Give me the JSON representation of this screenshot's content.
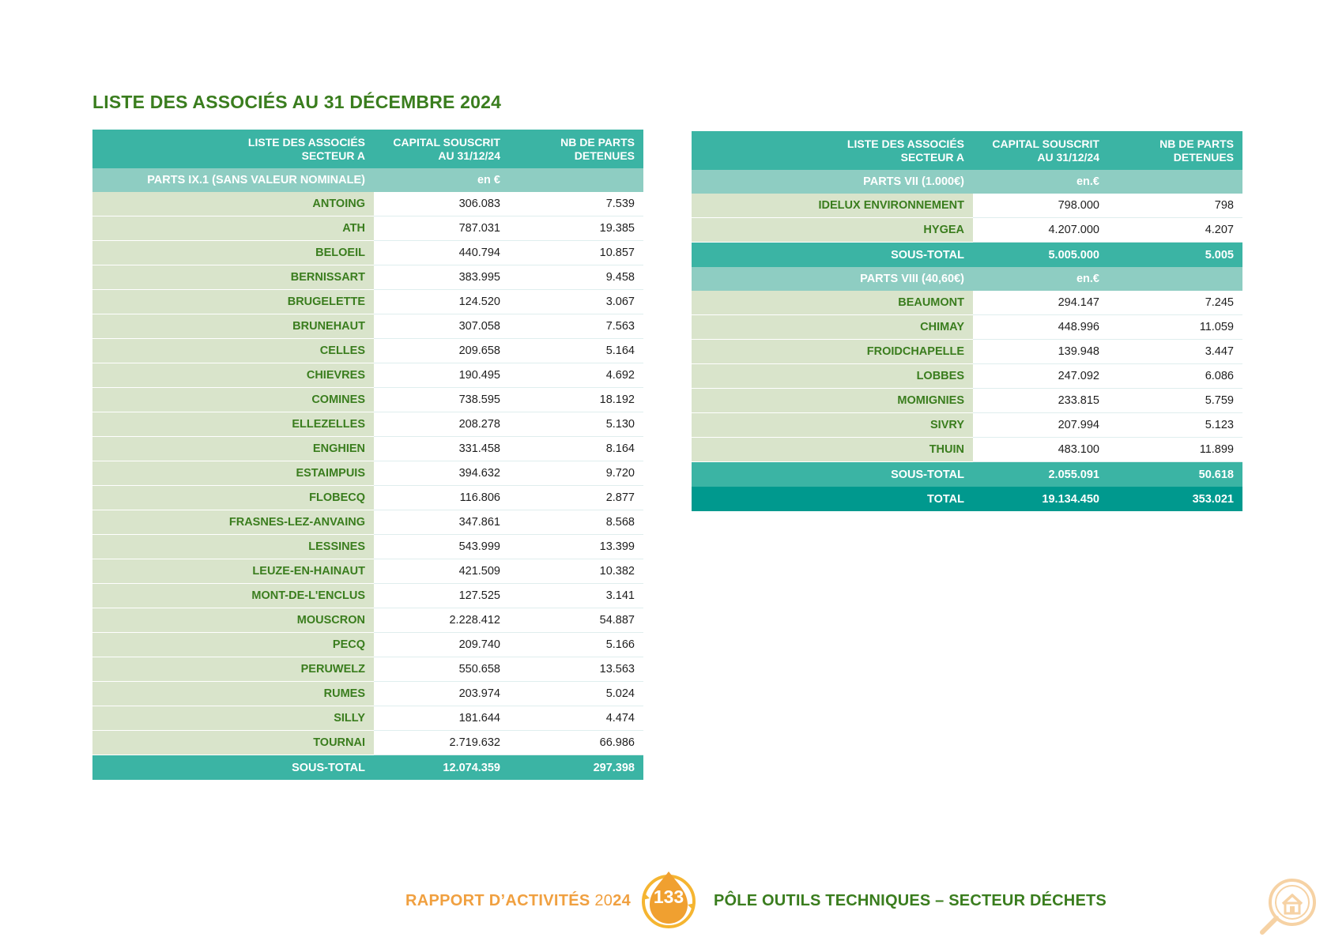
{
  "title": "LISTE DES ASSOCIÉS AU 31 DÉCEMBRE 2024",
  "left_table": {
    "header": {
      "col1_line1": "LISTE DES ASSOCIÉS",
      "col1_line2": "SECTEUR A",
      "col2_line1": "CAPITAL SOUSCRIT",
      "col2_line2": "AU 31/12/24",
      "col3_line1": "NB DE PARTS",
      "col3_line2": "DETENUES"
    },
    "section": {
      "label": "PARTS IX.1 (SANS VALEUR NOMINALE)",
      "unit": "en €"
    },
    "rows": [
      {
        "name": "ANTOING",
        "capital": "306.083",
        "parts": "7.539"
      },
      {
        "name": "ATH",
        "capital": "787.031",
        "parts": "19.385"
      },
      {
        "name": "BELOEIL",
        "capital": "440.794",
        "parts": "10.857"
      },
      {
        "name": "BERNISSART",
        "capital": "383.995",
        "parts": "9.458"
      },
      {
        "name": "BRUGELETTE",
        "capital": "124.520",
        "parts": "3.067"
      },
      {
        "name": "BRUNEHAUT",
        "capital": "307.058",
        "parts": "7.563"
      },
      {
        "name": "CELLES",
        "capital": "209.658",
        "parts": "5.164"
      },
      {
        "name": "CHIEVRES",
        "capital": "190.495",
        "parts": "4.692"
      },
      {
        "name": "COMINES",
        "capital": "738.595",
        "parts": "18.192"
      },
      {
        "name": "ELLEZELLES",
        "capital": "208.278",
        "parts": "5.130"
      },
      {
        "name": "ENGHIEN",
        "capital": "331.458",
        "parts": "8.164"
      },
      {
        "name": "ESTAIMPUIS",
        "capital": "394.632",
        "parts": "9.720"
      },
      {
        "name": "FLOBECQ",
        "capital": "116.806",
        "parts": "2.877"
      },
      {
        "name": "FRASNES-LEZ-ANVAING",
        "capital": "347.861",
        "parts": "8.568"
      },
      {
        "name": "LESSINES",
        "capital": "543.999",
        "parts": "13.399"
      },
      {
        "name": "LEUZE-EN-HAINAUT",
        "capital": "421.509",
        "parts": "10.382"
      },
      {
        "name": "MONT-DE-L'ENCLUS",
        "capital": "127.525",
        "parts": "3.141"
      },
      {
        "name": "MOUSCRON",
        "capital": "2.228.412",
        "parts": "54.887"
      },
      {
        "name": "PECQ",
        "capital": "209.740",
        "parts": "5.166"
      },
      {
        "name": "PERUWELZ",
        "capital": "550.658",
        "parts": "13.563"
      },
      {
        "name": "RUMES",
        "capital": "203.974",
        "parts": "5.024"
      },
      {
        "name": "SILLY",
        "capital": "181.644",
        "parts": "4.474"
      },
      {
        "name": "TOURNAI",
        "capital": "2.719.632",
        "parts": "66.986"
      }
    ],
    "subtotal": {
      "label": "SOUS-TOTAL",
      "capital": "12.074.359",
      "parts": "297.398"
    }
  },
  "right_table": {
    "header": {
      "col1_line1": "LISTE DES ASSOCIÉS",
      "col1_line2": "SECTEUR A",
      "col2_line1": "CAPITAL SOUSCRIT",
      "col2_line2": "AU 31/12/24",
      "col3_line1": "NB DE PARTS",
      "col3_line2": "DETENUES"
    },
    "section1": {
      "label": "PARTS VII (1.000€)",
      "unit": "en.€",
      "rows": [
        {
          "name": "IDELUX ENVIRONNEMENT",
          "capital": "798.000",
          "parts": "798"
        },
        {
          "name": "HYGEA",
          "capital": "4.207.000",
          "parts": "4.207"
        }
      ],
      "subtotal": {
        "label": "SOUS-TOTAL",
        "capital": "5.005.000",
        "parts": "5.005"
      }
    },
    "section2": {
      "label": "PARTS VIII (40,60€)",
      "unit": "en.€",
      "rows": [
        {
          "name": "BEAUMONT",
          "capital": "294.147",
          "parts": "7.245"
        },
        {
          "name": "CHIMAY",
          "capital": "448.996",
          "parts": "11.059"
        },
        {
          "name": "FROIDCHAPELLE",
          "capital": "139.948",
          "parts": "3.447"
        },
        {
          "name": "LOBBES",
          "capital": "247.092",
          "parts": "6.086"
        },
        {
          "name": "MOMIGNIES",
          "capital": "233.815",
          "parts": "5.759"
        },
        {
          "name": "SIVRY",
          "capital": "207.994",
          "parts": "5.123"
        },
        {
          "name": "THUIN",
          "capital": "483.100",
          "parts": "11.899"
        }
      ],
      "subtotal": {
        "label": "SOUS-TOTAL",
        "capital": "2.055.091",
        "parts": "50.618"
      }
    },
    "total": {
      "label": "TOTAL",
      "capital": "19.134.450",
      "parts": "353.021"
    }
  },
  "footer": {
    "left_text": "RAPPORT D’ACTIVITÉS ",
    "left_year_a": "20",
    "left_year_b": "24",
    "page_number": "133",
    "right_text": "PÔLE OUTILS TECHNIQUES – SECTEUR DÉCHETS"
  },
  "icons": {
    "page_badge": "water-drop-recycle-icon",
    "corner": "home-search-icon"
  },
  "colors": {
    "title_green": "#3a7d1e",
    "header_teal": "#3bb4a4",
    "section_teal": "#8ecdc2",
    "name_cell_bg": "#d9e4cb",
    "total_teal": "#00998e",
    "footer_orange": "#f0a040"
  }
}
